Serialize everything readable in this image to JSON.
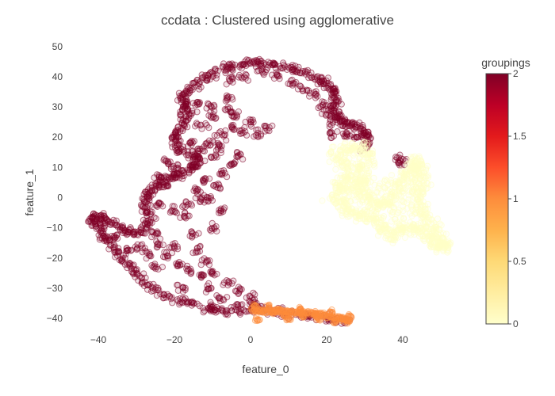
{
  "chart_data": {
    "type": "scatter",
    "title": "ccdata : Clustered using agglomerative",
    "xlabel": "feature_0",
    "ylabel": "feature_1",
    "xlim": [
      -45,
      55
    ],
    "ylim": [
      -46,
      51
    ],
    "x_ticks": [
      -40,
      -20,
      0,
      20,
      40
    ],
    "y_ticks": [
      -40,
      -30,
      -20,
      -10,
      0,
      10,
      20,
      30,
      40,
      50
    ],
    "grid": false,
    "marker": "open-circle",
    "colorbar": {
      "title": "groupings",
      "range": [
        0,
        2
      ],
      "ticks": [
        0,
        0.5,
        1,
        1.5,
        2
      ],
      "colorscale": [
        "#ffffcc",
        "#ffeda0",
        "#fed976",
        "#feb24c",
        "#fd8d3c",
        "#fc4e2a",
        "#e31a1c",
        "#bd0026",
        "#800026"
      ]
    },
    "clusters": [
      {
        "group": 2,
        "color": "#800026",
        "path": [
          [
            26,
            -41
          ],
          [
            20,
            -40
          ],
          [
            14,
            -39
          ],
          [
            8,
            -38
          ],
          [
            2,
            -37
          ],
          [
            -4,
            -38
          ],
          [
            -10,
            -37
          ],
          [
            -16,
            -35
          ],
          [
            -22,
            -33
          ],
          [
            -27,
            -29
          ],
          [
            -30,
            -25
          ],
          [
            -33,
            -21
          ],
          [
            -36,
            -17
          ],
          [
            -39,
            -12
          ],
          [
            -42,
            -8
          ],
          [
            -41,
            -6
          ],
          [
            -38,
            -7
          ],
          [
            -34,
            -10
          ],
          [
            -31,
            -12
          ],
          [
            -28,
            -11
          ],
          [
            -26,
            -7
          ],
          [
            -28,
            -3
          ],
          [
            -26,
            2
          ],
          [
            -24,
            5
          ],
          [
            -21,
            7
          ],
          [
            -18,
            8
          ],
          [
            -15,
            10
          ],
          [
            -13,
            12
          ],
          [
            -15,
            14
          ],
          [
            -19,
            16
          ],
          [
            -20,
            20
          ],
          [
            -18,
            23
          ],
          [
            -17,
            27
          ],
          [
            -17,
            31
          ],
          [
            -18,
            34
          ],
          [
            -15,
            37
          ],
          [
            -11,
            40
          ],
          [
            -7,
            43
          ],
          [
            -3,
            44
          ],
          [
            1,
            45
          ],
          [
            5,
            44
          ],
          [
            10,
            43
          ],
          [
            14,
            41
          ],
          [
            18,
            39
          ],
          [
            21,
            37
          ],
          [
            22,
            34
          ],
          [
            22,
            30
          ],
          [
            23,
            27
          ],
          [
            24,
            25
          ],
          [
            27,
            24
          ],
          [
            30,
            22
          ],
          [
            31,
            19
          ],
          [
            30,
            16
          ]
        ],
        "extra": [
          [
            -10,
            -36
          ],
          [
            -18,
            -30
          ],
          [
            -25,
            -23
          ],
          [
            -32,
            -17
          ],
          [
            -36,
            -13
          ],
          [
            -39,
            -9
          ],
          [
            -38,
            -14
          ],
          [
            -24,
            -2
          ],
          [
            -20,
            -4
          ],
          [
            -17,
            -6
          ],
          [
            -15,
            -12
          ],
          [
            -14,
            -17
          ],
          [
            -12,
            -21
          ],
          [
            -10,
            -25
          ],
          [
            -6,
            -28
          ],
          [
            -3,
            -31
          ],
          [
            0,
            -33
          ],
          [
            1,
            -35
          ],
          [
            -3,
            -36
          ],
          [
            -8,
            -33
          ],
          [
            -11,
            -30
          ],
          [
            -13,
            -26
          ],
          [
            -16,
            -24
          ],
          [
            -19,
            -22
          ],
          [
            -22,
            -19
          ],
          [
            -24,
            -15
          ],
          [
            -27,
            -19
          ],
          [
            -29,
            -16
          ],
          [
            -25,
            -12
          ],
          [
            -20,
            -16
          ],
          [
            -10,
            -10
          ],
          [
            -8,
            -4
          ],
          [
            -11,
            0
          ],
          [
            -13,
            -1
          ],
          [
            -9,
            4
          ],
          [
            -7,
            8
          ],
          [
            -5,
            11
          ],
          [
            -3,
            14
          ],
          [
            -9,
            14
          ],
          [
            -11,
            18
          ],
          [
            -8,
            21
          ],
          [
            -5,
            23
          ],
          [
            -2,
            22
          ],
          [
            2,
            21
          ],
          [
            4,
            23
          ],
          [
            0,
            25
          ],
          [
            -4,
            27
          ],
          [
            -6,
            29
          ],
          [
            -10,
            30
          ],
          [
            -14,
            31
          ],
          [
            -16,
            28
          ],
          [
            -13,
            24
          ],
          [
            -10,
            27
          ],
          [
            -6,
            33
          ],
          [
            -5,
            39
          ],
          [
            -2,
            40
          ],
          [
            3,
            42
          ],
          [
            7,
            40
          ],
          [
            11,
            38
          ],
          [
            14,
            36
          ],
          [
            17,
            34
          ],
          [
            19,
            31
          ],
          [
            20,
            28
          ],
          [
            21,
            25
          ],
          [
            21,
            21
          ],
          [
            25,
            21
          ],
          [
            28,
            20
          ],
          [
            39,
            13
          ],
          [
            40,
            12
          ],
          [
            -20,
            10
          ],
          [
            -22,
            12
          ],
          [
            -24,
            7
          ],
          [
            -27,
            1
          ],
          [
            -22,
            4
          ],
          [
            -17,
            -2
          ],
          [
            -14,
            2
          ],
          [
            -12,
            6
          ],
          [
            -16,
            18
          ],
          [
            -13,
            16
          ],
          [
            -8,
            17
          ]
        ]
      },
      {
        "group": 1,
        "color": "#fd8d3c",
        "path": [
          [
            0,
            -37
          ],
          [
            4,
            -37.5
          ],
          [
            8,
            -37.5
          ],
          [
            12,
            -38
          ],
          [
            16,
            -38
          ],
          [
            20,
            -39
          ],
          [
            24,
            -40
          ],
          [
            26,
            -41
          ]
        ],
        "extra": [
          [
            2,
            -40
          ],
          [
            6,
            -38
          ],
          [
            10,
            -40
          ],
          [
            14,
            -39
          ],
          [
            18,
            -40
          ],
          [
            22,
            -41
          ],
          [
            26,
            -39
          ],
          [
            1,
            -36
          ],
          [
            5,
            -36
          ],
          [
            9,
            -39
          ],
          [
            13,
            -37
          ],
          [
            17,
            -39
          ],
          [
            21,
            -38
          ]
        ]
      },
      {
        "group": 0,
        "color": "#ffffc8",
        "path": [
          [
            22,
            14
          ],
          [
            25,
            16
          ],
          [
            28,
            17
          ],
          [
            31,
            15
          ],
          [
            30,
            11
          ],
          [
            29,
            7
          ],
          [
            28,
            4
          ],
          [
            29,
            1
          ],
          [
            31,
            -1
          ],
          [
            33,
            -2
          ],
          [
            36,
            -2
          ],
          [
            38,
            1
          ],
          [
            39,
            4
          ],
          [
            41,
            7
          ],
          [
            42,
            10
          ],
          [
            44,
            12
          ],
          [
            45,
            10
          ],
          [
            45,
            6
          ],
          [
            45,
            2
          ],
          [
            44,
            -2
          ],
          [
            46,
            -6
          ],
          [
            48,
            -10
          ],
          [
            50,
            -14
          ],
          [
            51,
            -17
          ],
          [
            49,
            -15
          ],
          [
            46,
            -12
          ],
          [
            43,
            -10
          ],
          [
            40,
            -11
          ],
          [
            37,
            -13
          ],
          [
            35,
            -10
          ],
          [
            33,
            -7
          ],
          [
            30,
            -6
          ],
          [
            27,
            -5
          ],
          [
            25,
            -3
          ],
          [
            23,
            0
          ],
          [
            24,
            3
          ],
          [
            26,
            6
          ],
          [
            25,
            10
          ],
          [
            22,
            14
          ]
        ],
        "extra": [
          [
            22,
            0
          ],
          [
            23,
            5
          ],
          [
            26,
            12
          ],
          [
            28,
            9
          ],
          [
            31,
            5
          ],
          [
            34,
            3
          ],
          [
            36,
            5
          ],
          [
            37,
            -5
          ],
          [
            39,
            -7
          ],
          [
            42,
            -8
          ],
          [
            44,
            -5
          ],
          [
            43,
            3
          ],
          [
            41,
            -2
          ],
          [
            47,
            -12
          ],
          [
            49,
            -16
          ]
        ]
      }
    ]
  }
}
